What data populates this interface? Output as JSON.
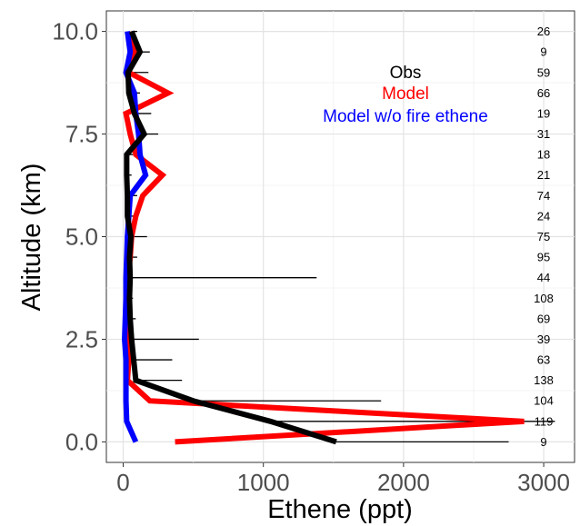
{
  "chart_data": {
    "type": "line",
    "xlabel": "Ethene (ppt)",
    "ylabel": "Altitude (km)",
    "xlim": [
      -120,
      3220
    ],
    "ylim": [
      -0.5,
      10.5
    ],
    "x_ticks": [
      0,
      1000,
      2000,
      3000
    ],
    "y_ticks": [
      0.0,
      2.5,
      5.0,
      7.5,
      10.0
    ],
    "x_tick_labels": [
      "0",
      "1000",
      "2000",
      "3000"
    ],
    "y_tick_labels": [
      "0.0",
      "2.5",
      "5.0",
      "7.5",
      "10.0"
    ],
    "grid": true,
    "legend_position": "top-right",
    "altitudes": [
      0,
      0.5,
      1,
      1.5,
      2,
      2.5,
      3,
      3.5,
      4,
      4.5,
      5,
      5.5,
      6,
      6.5,
      7,
      7.5,
      8,
      8.5,
      9,
      9.5,
      10
    ],
    "counts": [
      "9",
      "119",
      "104",
      "138",
      "63",
      "39",
      "69",
      "108",
      "44",
      "95",
      "75",
      "24",
      "74",
      "21",
      "18",
      "31",
      "19",
      "66",
      "59",
      "9",
      "26"
    ],
    "series": [
      {
        "name": "Obs",
        "color": "#000000",
        "values": [
          1520,
          1050,
          500,
          90,
          75,
          60,
          50,
          45,
          50,
          45,
          55,
          30,
          30,
          25,
          25,
          150,
          80,
          40,
          35,
          120,
          60
        ],
        "whisker_high": [
          2750,
          3080,
          1840,
          420,
          350,
          540,
          90,
          70,
          1380,
          100,
          170,
          110,
          100,
          60,
          70,
          250,
          200,
          120,
          180,
          190,
          100
        ]
      },
      {
        "name": "Model",
        "color": "#ff0000",
        "values": [
          370,
          2860,
          190,
          30,
          40,
          25,
          40,
          35,
          35,
          50,
          60,
          90,
          140,
          280,
          90,
          50,
          20,
          320,
          40,
          80,
          60
        ]
      },
      {
        "name": "Model w/o fire ethene",
        "color": "#0000ff",
        "values": [
          90,
          25,
          20,
          20,
          20,
          10,
          15,
          20,
          20,
          25,
          30,
          40,
          50,
          160,
          120,
          110,
          90,
          80,
          20,
          50,
          30
        ]
      }
    ]
  }
}
